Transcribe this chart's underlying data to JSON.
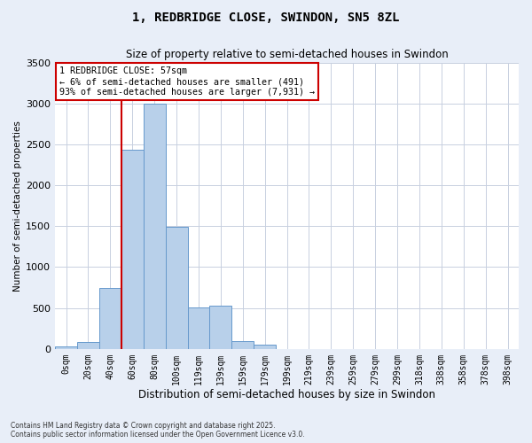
{
  "title_line1": "1, REDBRIDGE CLOSE, SWINDON, SN5 8ZL",
  "title_line2": "Size of property relative to semi-detached houses in Swindon",
  "xlabel": "Distribution of semi-detached houses by size in Swindon",
  "ylabel": "Number of semi-detached properties",
  "categories": [
    "0sqm",
    "20sqm",
    "40sqm",
    "60sqm",
    "80sqm",
    "100sqm",
    "119sqm",
    "139sqm",
    "159sqm",
    "179sqm",
    "199sqm",
    "219sqm",
    "239sqm",
    "259sqm",
    "279sqm",
    "299sqm",
    "318sqm",
    "338sqm",
    "358sqm",
    "378sqm",
    "398sqm"
  ],
  "values": [
    30,
    80,
    750,
    2430,
    3000,
    1490,
    510,
    530,
    95,
    50,
    0,
    0,
    0,
    0,
    0,
    0,
    0,
    0,
    0,
    0,
    0
  ],
  "bar_color": "#b8d0ea",
  "bar_edge_color": "#6699cc",
  "vline_color": "#cc0000",
  "vline_pos": 3.0,
  "annotation_text": "1 REDBRIDGE CLOSE: 57sqm\n← 6% of semi-detached houses are smaller (491)\n93% of semi-detached houses are larger (7,931) →",
  "annotation_box_color": "#cc0000",
  "annotation_bg": "#ffffff",
  "ylim": [
    0,
    3500
  ],
  "yticks": [
    0,
    500,
    1000,
    1500,
    2000,
    2500,
    3000,
    3500
  ],
  "footnote": "Contains HM Land Registry data © Crown copyright and database right 2025.\nContains public sector information licensed under the Open Government Licence v3.0.",
  "bg_color": "#e8eef8",
  "plot_bg_color": "#ffffff",
  "grid_color": "#c8d0e0"
}
